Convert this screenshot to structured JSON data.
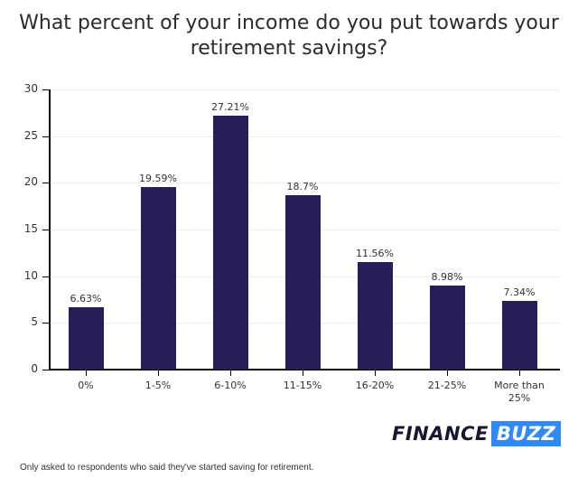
{
  "title": "What percent of your income do you put towards your retirement savings?",
  "chart_data": {
    "type": "bar",
    "title": "What percent of your income do you put towards your retirement savings?",
    "categories": [
      "0%",
      "1-5%",
      "6-10%",
      "11-15%",
      "16-20%",
      "21-25%",
      "More than 25%"
    ],
    "values": [
      6.63,
      19.59,
      27.21,
      18.7,
      11.56,
      8.98,
      7.34
    ],
    "value_labels": [
      "6.63%",
      "19.59%",
      "27.21%",
      "18.7%",
      "11.56%",
      "8.98%",
      "7.34%"
    ],
    "xlabel": "",
    "ylabel": "",
    "ylim": [
      0,
      30
    ],
    "yticks": [
      0,
      5,
      10,
      15,
      20,
      25,
      30
    ],
    "grid": true,
    "legend": "none",
    "bar_color": "#261f55"
  },
  "brand": {
    "part1": "FINANCE",
    "part2": "BUZZ",
    "accent": "#2f8af5"
  },
  "footnote": "Only asked to respondents who said they've started saving for retirement."
}
